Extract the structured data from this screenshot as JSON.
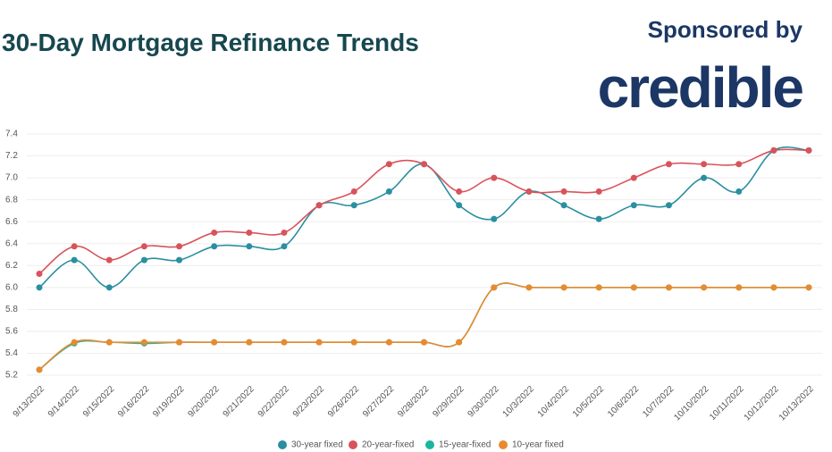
{
  "chart_data": {
    "type": "line",
    "title": "30-Day Mortgage Refinance Trends",
    "sponsor_text": "Sponsored by",
    "sponsor_name": "credible",
    "categories": [
      "9/13/2022",
      "9/14/2022",
      "9/15/2022",
      "9/16/2022",
      "9/19/2022",
      "9/20/2022",
      "9/21/2022",
      "9/22/2022",
      "9/23/2022",
      "9/26/2022",
      "9/27/2022",
      "9/28/2022",
      "9/29/2022",
      "9/30/2022",
      "10/3/2022",
      "10/4/2022",
      "10/5/2022",
      "10/6/2022",
      "10/7/2022",
      "10/10/2022",
      "10/11/2022",
      "10/12/2022",
      "10/13/2022"
    ],
    "series": [
      {
        "name": "30-year fixed",
        "color": "#2a8fa0",
        "values": [
          6.0,
          6.25,
          6.0,
          6.25,
          6.25,
          6.375,
          6.375,
          6.375,
          6.75,
          6.75,
          6.875,
          7.125,
          6.75,
          6.625,
          6.875,
          6.75,
          6.625,
          6.75,
          6.75,
          7.0,
          6.875,
          7.25,
          7.25
        ]
      },
      {
        "name": "20-year-fixed",
        "color": "#d9535b",
        "values": [
          6.125,
          6.375,
          6.25,
          6.375,
          6.375,
          6.5,
          6.5,
          6.5,
          6.75,
          6.875,
          7.125,
          7.125,
          6.875,
          7.0,
          6.875,
          6.875,
          6.875,
          7.0,
          7.125,
          7.125,
          7.125,
          7.25,
          7.25
        ]
      },
      {
        "name": "15-year-fixed",
        "color": "#1db5a0",
        "values": [
          5.25,
          5.49,
          5.5,
          5.49,
          5.5,
          5.5,
          5.5,
          5.5,
          5.5,
          5.5,
          5.5,
          5.5,
          5.5,
          6.0,
          6.0,
          6.0,
          6.0,
          6.0,
          6.0,
          6.0,
          6.0,
          6.0,
          6.0
        ]
      },
      {
        "name": "10-year fixed",
        "color": "#ea8a2e",
        "values": [
          5.25,
          5.5,
          5.5,
          5.5,
          5.5,
          5.5,
          5.5,
          5.5,
          5.5,
          5.5,
          5.5,
          5.5,
          5.5,
          6.0,
          6.0,
          6.0,
          6.0,
          6.0,
          6.0,
          6.0,
          6.0,
          6.0,
          6.0
        ]
      }
    ],
    "ylim": [
      5.2,
      7.4
    ],
    "yticks": [
      5.2,
      5.4,
      5.6,
      5.8,
      {
        "value": 6.0,
        "label": "6.0"
      },
      6.2,
      6.4,
      6.6,
      6.8,
      {
        "value": 7.0,
        "label": "7.0"
      },
      7.2,
      7.4
    ],
    "grid": true
  }
}
